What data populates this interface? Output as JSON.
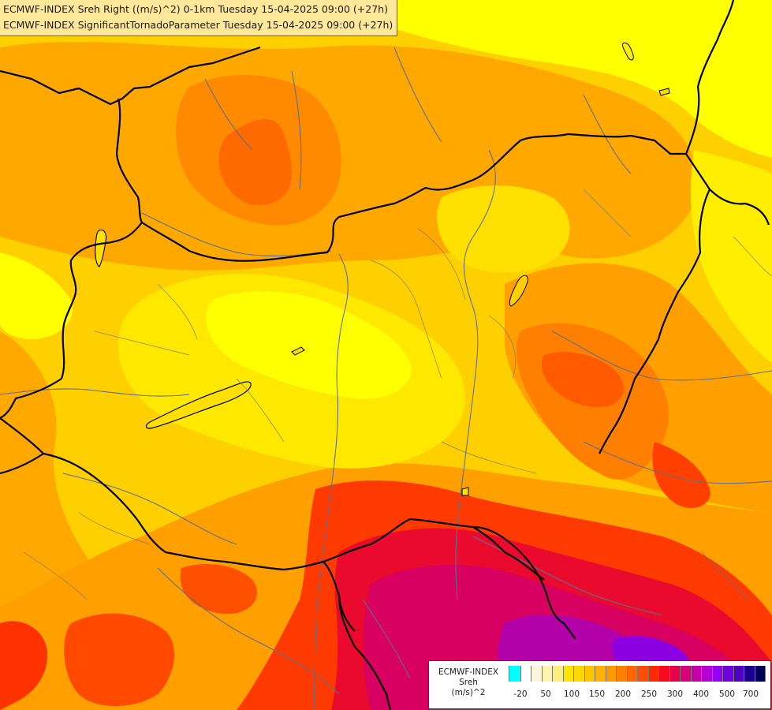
{
  "header": {
    "line1": "ECMWF-INDEX Sreh Right ((m/s)^2) 0-1km Tuesday 15-04-2025 09:00 (+27h)",
    "line2": "ECMWF-INDEX SignificantTornadoParameter Tuesday 15-04-2025 09:00 (+27h)"
  },
  "legend": {
    "line1": "ECMWF-INDEX",
    "line2": "Sreh",
    "line3": "(m/s)^2",
    "colors": [
      "#00ffff",
      "#ffffff",
      "#fff7dc",
      "#fff3b0",
      "#ffee80",
      "#ffe600",
      "#ffd700",
      "#ffc400",
      "#ffb000",
      "#ff9900",
      "#ff8000",
      "#ff6600",
      "#ff4c00",
      "#ff2b00",
      "#f50a1e",
      "#e6004c",
      "#d9007a",
      "#c800a8",
      "#b400d2",
      "#9400f0",
      "#7000e0",
      "#4c00c0",
      "#1e0090",
      "#00005a"
    ],
    "ticks": [
      "-20",
      "50",
      "100",
      "150",
      "200",
      "250",
      "300",
      "400",
      "500",
      "700"
    ]
  },
  "map": {
    "palette": {
      "yellow": "#ffff00",
      "yellow_orange": "#ffd700",
      "orange_light": "#ffb000",
      "orange": "#ff9900",
      "orange_dark": "#ff8000",
      "red_orange": "#ff5a00",
      "red": "#ff2b00",
      "crimson": "#e6004c",
      "magenta": "#d9007a",
      "purple": "#a800d8",
      "border": "#000000",
      "river": "#5e6e8c"
    }
  }
}
